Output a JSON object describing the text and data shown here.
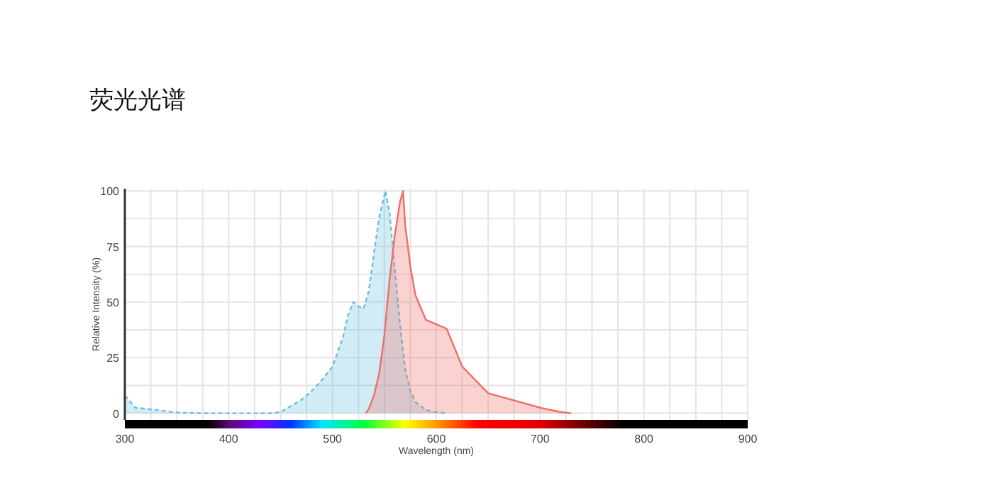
{
  "chart_data": {
    "type": "area",
    "title": "荧光光谱",
    "xlabel": "Wavelength (nm)",
    "ylabel": "Relative Intensity (%)",
    "xlim": [
      300,
      900
    ],
    "ylim": [
      -3,
      101
    ],
    "xticks": [
      300,
      {
        "value": 325,
        "label": null
      },
      {
        "value": 350,
        "label": null
      },
      {
        "value": 375,
        "label": null
      },
      400,
      {
        "value": 425,
        "label": null
      },
      {
        "value": 450,
        "label": null
      },
      {
        "value": 475,
        "label": null
      },
      500,
      {
        "value": 525,
        "label": null
      },
      {
        "value": 550,
        "label": null
      },
      {
        "value": 575,
        "label": null
      },
      600,
      {
        "value": 625,
        "label": null
      },
      {
        "value": 650,
        "label": null
      },
      {
        "value": 675,
        "label": null
      },
      700,
      {
        "value": 725,
        "label": null
      },
      {
        "value": 750,
        "label": null
      },
      {
        "value": 775,
        "label": null
      },
      800,
      {
        "value": 825,
        "label": null
      },
      {
        "value": 850,
        "label": null
      },
      {
        "value": 875,
        "label": null
      },
      900
    ],
    "yticks": [
      0,
      {
        "value": 12.5,
        "label": null
      },
      25,
      {
        "value": 37.5,
        "label": null
      },
      50,
      {
        "value": 62.5,
        "label": null
      },
      75,
      {
        "value": 87.5,
        "label": null
      },
      100
    ],
    "grid": true,
    "series": [
      {
        "color": "#6bbfe0",
        "line_style": "dashed",
        "x": [
          300,
          310,
          330,
          350,
          380,
          440,
          450,
          470,
          480,
          490,
          500,
          510,
          515,
          520,
          525,
          530,
          535,
          540,
          545,
          551,
          555,
          560,
          565,
          570,
          575,
          580,
          590,
          600,
          610
        ],
        "values": [
          8,
          2.5,
          1.5,
          0.3,
          0,
          0,
          0.5,
          6,
          10,
          15,
          21,
          34,
          44,
          50,
          48,
          47,
          55,
          72,
          88,
          100,
          90,
          65,
          40,
          20,
          10,
          5,
          1.5,
          0.5,
          0
        ]
      },
      {
        "color": "#ee6e68",
        "line_style": "solid",
        "x": [
          532,
          535,
          540,
          545,
          550,
          555,
          560,
          565,
          568,
          570,
          575,
          580,
          590,
          600,
          610,
          625,
          650,
          700,
          720,
          730
        ],
        "values": [
          0,
          2,
          8,
          18,
          35,
          60,
          80,
          95,
          100,
          85,
          66,
          53,
          42,
          40,
          38,
          21,
          9,
          2.5,
          0.5,
          0
        ]
      }
    ]
  }
}
